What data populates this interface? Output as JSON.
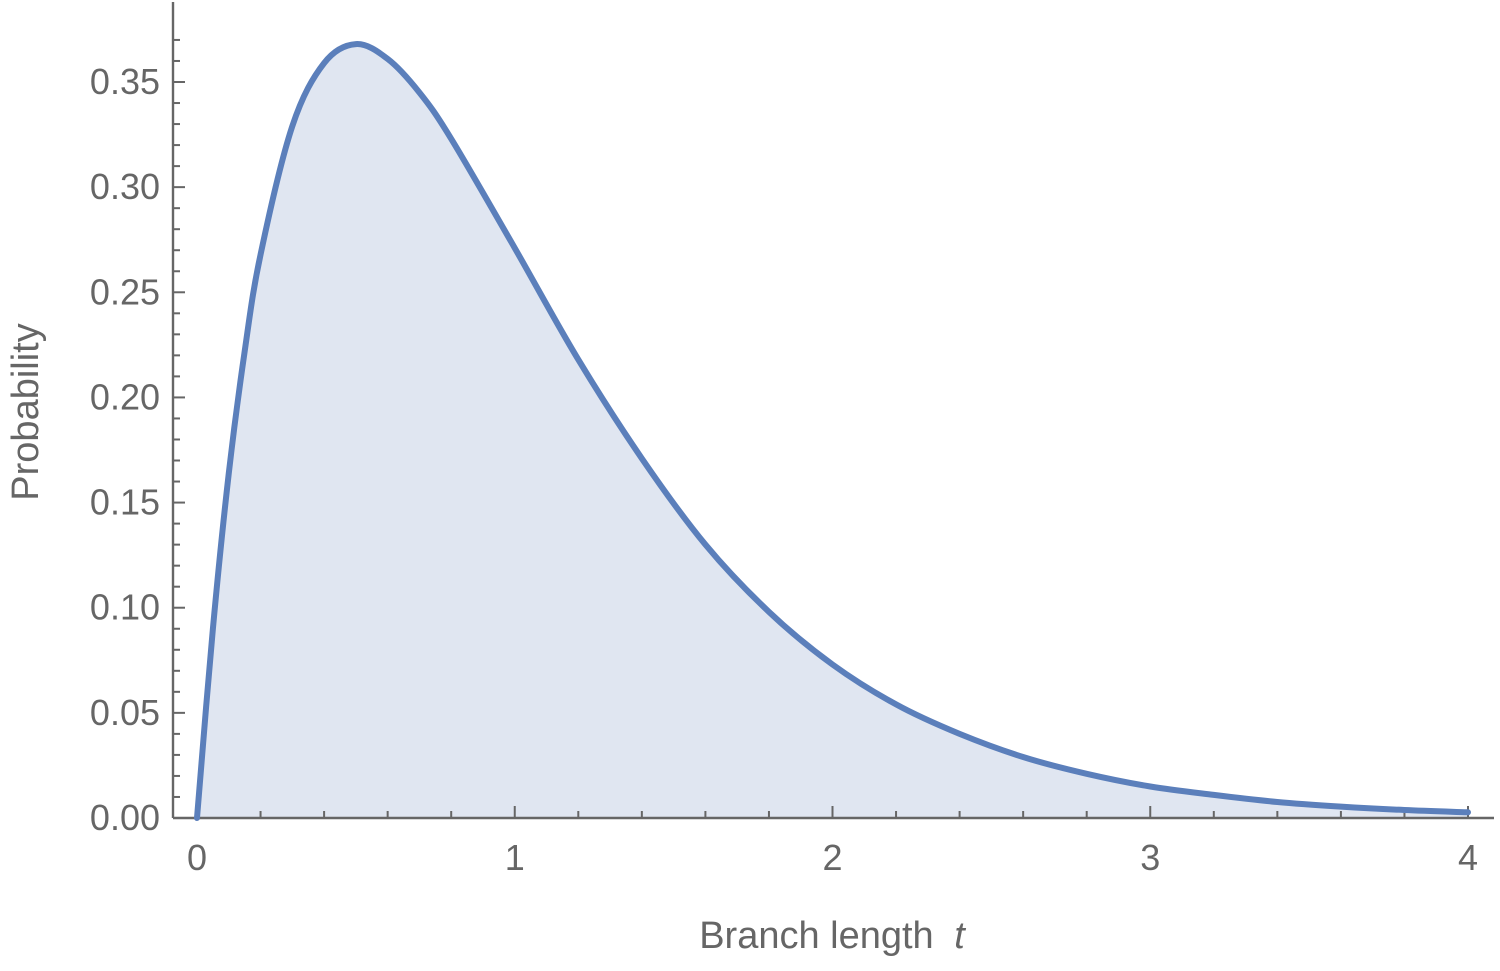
{
  "chart_data": {
    "type": "area",
    "title": "",
    "xlabel": "Branch length",
    "xlabel_var": "t",
    "ylabel": "Probability",
    "xlim": [
      0,
      4
    ],
    "ylim": [
      0,
      0.37
    ],
    "x_ticks": [
      {
        "value": 0,
        "label": "0"
      },
      {
        "value": 1,
        "label": "1"
      },
      {
        "value": 2,
        "label": "2"
      },
      {
        "value": 3,
        "label": "3"
      },
      {
        "value": 4,
        "label": "4"
      }
    ],
    "y_ticks": [
      {
        "value": 0,
        "label": "0.00"
      },
      {
        "value": 0.05,
        "label": "0.05"
      },
      {
        "value": 0.1,
        "label": "0.10"
      },
      {
        "value": 0.15,
        "label": "0.15"
      },
      {
        "value": 0.2,
        "label": "0.20"
      },
      {
        "value": 0.25,
        "label": "0.25"
      },
      {
        "value": 0.3,
        "label": "0.30"
      },
      {
        "value": 0.35,
        "label": "0.35"
      }
    ],
    "series": [
      {
        "x": [
          0,
          0.05,
          0.1,
          0.15,
          0.2,
          0.3,
          0.4,
          0.5,
          0.6,
          0.7,
          0.8,
          1.0,
          1.2,
          1.4,
          1.6,
          1.8,
          2.0,
          2.2,
          2.4,
          2.6,
          2.8,
          3.0,
          3.2,
          3.4,
          3.6,
          3.8,
          4.0
        ],
        "y": [
          0,
          0.09,
          0.164,
          0.222,
          0.268,
          0.329,
          0.359,
          0.368,
          0.361,
          0.345,
          0.323,
          0.271,
          0.218,
          0.171,
          0.13,
          0.098,
          0.073,
          0.054,
          0.04,
          0.029,
          0.021,
          0.015,
          0.011,
          0.0076,
          0.0054,
          0.0038,
          0.0027
        ]
      }
    ],
    "colors": {
      "line": "#5b7fbb",
      "fill": "#e0e6f1",
      "axis": "#666666"
    },
    "grid": false,
    "legend": "none"
  }
}
